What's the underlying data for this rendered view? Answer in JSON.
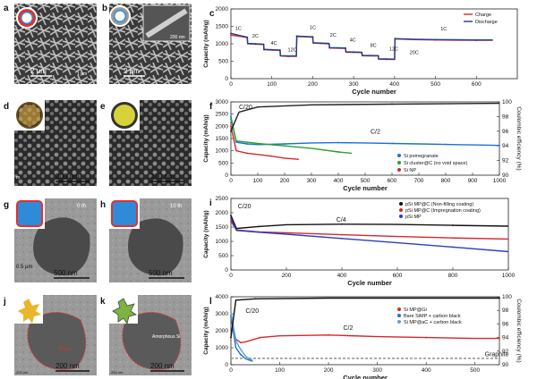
{
  "panels": [
    {
      "letter": "a",
      "type": "image",
      "scale": "2 μm",
      "inset_scale": "1 μm"
    },
    {
      "letter": "b",
      "type": "image",
      "scale": "2 μm",
      "inset_scale": "200 nm"
    },
    {
      "letter": "d",
      "type": "image",
      "scale": "200 nm",
      "inset_scale": "m"
    },
    {
      "letter": "e",
      "type": "image",
      "scale": "200 nm"
    },
    {
      "letter": "g",
      "type": "image",
      "scale": "500 nm",
      "inset_scale": "0.5 μm",
      "corner": "0 th"
    },
    {
      "letter": "h",
      "type": "image",
      "scale": "500 nm",
      "corner": "10 th"
    },
    {
      "letter": "j",
      "type": "image",
      "scale": "200 nm",
      "inset_scale": "200 nm",
      "annotation": "Si μm"
    },
    {
      "letter": "k",
      "type": "image",
      "scale": "200 nm",
      "inset_scale": "200 nm",
      "annotation": "Amorphous Si"
    }
  ],
  "chart_data": [
    {
      "id": "c",
      "letter": "c",
      "type": "line",
      "xlabel": "Cycle number",
      "ylabel": "Capacity (mAh/g)",
      "xlim": [
        0,
        700
      ],
      "ylim": [
        0,
        2000
      ],
      "xticks": [
        0,
        100,
        200,
        300,
        400,
        500,
        600
      ],
      "yticks": [
        0,
        500,
        1000,
        1500,
        2000
      ],
      "legend": [
        "Charge",
        "Discharge"
      ],
      "rate_labels": [
        {
          "text": "1C",
          "x": 18,
          "y": 1400
        },
        {
          "text": "2C",
          "x": 60,
          "y": 1180
        },
        {
          "text": "4C",
          "x": 105,
          "y": 980
        },
        {
          "text": "12C",
          "x": 150,
          "y": 780
        },
        {
          "text": "1C",
          "x": 200,
          "y": 1420
        },
        {
          "text": "2C",
          "x": 250,
          "y": 1200
        },
        {
          "text": "4C",
          "x": 298,
          "y": 1060
        },
        {
          "text": "8C",
          "x": 348,
          "y": 910
        },
        {
          "text": "12C",
          "x": 398,
          "y": 810
        },
        {
          "text": "20C",
          "x": 448,
          "y": 700
        },
        {
          "text": "1C",
          "x": 520,
          "y": 1380
        }
      ],
      "series": [
        {
          "name": "Charge",
          "color": "#d62728",
          "points": [
            [
              0,
              1250
            ],
            [
              20,
              1220
            ],
            [
              40,
              1180
            ],
            [
              41,
              1000
            ],
            [
              60,
              990
            ],
            [
              80,
              980
            ],
            [
              81,
              830
            ],
            [
              100,
              820
            ],
            [
              120,
              810
            ],
            [
              121,
              650
            ],
            [
              140,
              640
            ],
            [
              160,
              640
            ],
            [
              161,
              1210
            ],
            [
              180,
              1200
            ],
            [
              200,
              1190
            ],
            [
              201,
              1020
            ],
            [
              220,
              1010
            ],
            [
              240,
              1000
            ],
            [
              241,
              880
            ],
            [
              260,
              875
            ],
            [
              280,
              870
            ],
            [
              281,
              760
            ],
            [
              300,
              755
            ],
            [
              320,
              750
            ],
            [
              321,
              660
            ],
            [
              340,
              655
            ],
            [
              360,
              650
            ],
            [
              361,
              560
            ],
            [
              380,
              555
            ],
            [
              400,
              550
            ],
            [
              401,
              1140
            ],
            [
              450,
              1120
            ],
            [
              500,
              1110
            ],
            [
              550,
              1105
            ],
            [
              600,
              1100
            ],
            [
              640,
              1100
            ]
          ]
        },
        {
          "name": "Discharge",
          "color": "#1f3f8f",
          "points": [
            [
              0,
              1300
            ],
            [
              20,
              1240
            ],
            [
              40,
              1190
            ],
            [
              41,
              1010
            ],
            [
              60,
              1000
            ],
            [
              80,
              990
            ],
            [
              81,
              840
            ],
            [
              100,
              830
            ],
            [
              120,
              820
            ],
            [
              121,
              660
            ],
            [
              140,
              650
            ],
            [
              160,
              650
            ],
            [
              161,
              1220
            ],
            [
              180,
              1210
            ],
            [
              200,
              1200
            ],
            [
              201,
              1030
            ],
            [
              220,
              1020
            ],
            [
              240,
              1010
            ],
            [
              241,
              890
            ],
            [
              260,
              885
            ],
            [
              280,
              880
            ],
            [
              281,
              770
            ],
            [
              300,
              765
            ],
            [
              320,
              760
            ],
            [
              321,
              670
            ],
            [
              340,
              665
            ],
            [
              360,
              660
            ],
            [
              361,
              570
            ],
            [
              380,
              565
            ],
            [
              400,
              560
            ],
            [
              401,
              1150
            ],
            [
              450,
              1130
            ],
            [
              500,
              1120
            ],
            [
              550,
              1115
            ],
            [
              600,
              1110
            ],
            [
              640,
              1110
            ]
          ]
        }
      ]
    },
    {
      "id": "f",
      "letter": "f",
      "type": "line",
      "xlabel": "Cycle number",
      "ylabel": "Capacity (mAh/g)",
      "y2label": "Coulombic efficiency (%)",
      "xlim": [
        0,
        1000
      ],
      "ylim": [
        0,
        3000
      ],
      "y2lim": [
        90,
        100
      ],
      "xticks": [
        0,
        100,
        200,
        300,
        400,
        500,
        600,
        700,
        800,
        900,
        1000
      ],
      "yticks": [
        0,
        500,
        1000,
        1500,
        2000,
        2500,
        3000
      ],
      "y2ticks": [
        90,
        92,
        94,
        96,
        98,
        100
      ],
      "annotations": [
        {
          "text": "C/20",
          "x": 30,
          "y": 2700
        },
        {
          "text": "C/2",
          "x": 520,
          "y": 1700
        }
      ],
      "series": [
        {
          "name": "Si pomegranate",
          "color": "#1f6fd1",
          "points": [
            [
              0,
              2400
            ],
            [
              20,
              1350
            ],
            [
              60,
              1280
            ],
            [
              100,
              1250
            ],
            [
              200,
              1280
            ],
            [
              300,
              1320
            ],
            [
              400,
              1330
            ],
            [
              500,
              1320
            ],
            [
              600,
              1300
            ],
            [
              700,
              1280
            ],
            [
              800,
              1260
            ],
            [
              900,
              1240
            ],
            [
              1000,
              1220
            ]
          ]
        },
        {
          "name": "Si cluster@C (no void space)",
          "color": "#2ca02c",
          "points": [
            [
              0,
              2300
            ],
            [
              20,
              1400
            ],
            [
              60,
              1350
            ],
            [
              100,
              1300
            ],
            [
              200,
              1200
            ],
            [
              300,
              1100
            ],
            [
              400,
              950
            ],
            [
              450,
              900
            ]
          ]
        },
        {
          "name": "Si NP",
          "color": "#d62728",
          "points": [
            [
              0,
              2000
            ],
            [
              20,
              1000
            ],
            [
              60,
              900
            ],
            [
              100,
              850
            ],
            [
              150,
              780
            ],
            [
              200,
              700
            ],
            [
              250,
              650
            ]
          ]
        },
        {
          "name": "Coulombic efficiency",
          "color": "#222222",
          "axis": "y2",
          "points": [
            [
              0,
              96
            ],
            [
              30,
              98.6
            ],
            [
              100,
              99.3
            ],
            [
              300,
              99.6
            ],
            [
              600,
              99.7
            ],
            [
              1000,
              99.8
            ]
          ]
        }
      ]
    },
    {
      "id": "i",
      "letter": "i",
      "type": "line",
      "xlabel": "Cycle number",
      "ylabel": "Capacity (mAh/g)",
      "xlim": [
        0,
        1000
      ],
      "ylim": [
        0,
        2500
      ],
      "xticks": [
        0,
        200,
        400,
        600,
        800,
        1000
      ],
      "yticks": [
        0,
        500,
        1000,
        1500,
        2000,
        2500
      ],
      "annotations": [
        {
          "text": "C/20",
          "x": 25,
          "y": 2150
        },
        {
          "text": "C/4",
          "x": 380,
          "y": 1680
        }
      ],
      "series": [
        {
          "name": "pSi MP@C (Non-filling coating)",
          "color": "#111111",
          "points": [
            [
              0,
              1900
            ],
            [
              20,
              1450
            ],
            [
              100,
              1520
            ],
            [
              200,
              1580
            ],
            [
              400,
              1600
            ],
            [
              600,
              1590
            ],
            [
              800,
              1560
            ],
            [
              1000,
              1530
            ]
          ]
        },
        {
          "name": "pSi MP@C (Impregnation coating)",
          "color": "#d62728",
          "points": [
            [
              0,
              1700
            ],
            [
              20,
              1400
            ],
            [
              100,
              1330
            ],
            [
              200,
              1300
            ],
            [
              400,
              1230
            ],
            [
              600,
              1170
            ],
            [
              800,
              1120
            ],
            [
              1000,
              1080
            ]
          ]
        },
        {
          "name": "pSi MP",
          "color": "#2a3fbf",
          "points": [
            [
              0,
              1800
            ],
            [
              20,
              1380
            ],
            [
              100,
              1320
            ],
            [
              200,
              1250
            ],
            [
              400,
              1100
            ],
            [
              600,
              950
            ],
            [
              800,
              800
            ],
            [
              1000,
              640
            ]
          ]
        }
      ]
    },
    {
      "id": "l",
      "letter": "l",
      "type": "line",
      "xlabel": "Cycle number",
      "ylabel": "Capacity (mAh/g)",
      "y2label": "Coulombic efficiency (%)",
      "xlim": [
        0,
        550
      ],
      "ylim": [
        0,
        4000
      ],
      "y2lim": [
        90,
        100
      ],
      "xticks": [
        0,
        100,
        200,
        300,
        400,
        500
      ],
      "yticks": [
        0,
        1000,
        2000,
        3000,
        4000
      ],
      "y2ticks": [
        90,
        92,
        94,
        96,
        98,
        100
      ],
      "annotations": [
        {
          "text": "C/20",
          "x": 30,
          "y": 3050
        },
        {
          "text": "C/2",
          "x": 230,
          "y": 2050
        },
        {
          "text": "Graphite",
          "x": 520,
          "y": 500
        }
      ],
      "series": [
        {
          "name": "Si MP@Gr",
          "color": "#d62728",
          "points": [
            [
              0,
              2800
            ],
            [
              10,
              1500
            ],
            [
              20,
              1300
            ],
            [
              30,
              1350
            ],
            [
              60,
              1600
            ],
            [
              100,
              1700
            ],
            [
              200,
              1750
            ],
            [
              300,
              1650
            ],
            [
              400,
              1600
            ],
            [
              500,
              1550
            ],
            [
              550,
              1550
            ]
          ]
        },
        {
          "name": "Bare SiMP + carbon black",
          "color": "#1f6fd1",
          "points": [
            [
              0,
              2900
            ],
            [
              10,
              1000
            ],
            [
              20,
              600
            ],
            [
              30,
              350
            ],
            [
              40,
              250
            ],
            [
              45,
              200
            ]
          ]
        },
        {
          "name": "Si MP@aC + carbon black",
          "color": "#5aa0d8",
          "points": [
            [
              0,
              3100
            ],
            [
              10,
              1400
            ],
            [
              20,
              900
            ],
            [
              30,
              500
            ],
            [
              40,
              300
            ],
            [
              45,
              250
            ]
          ]
        },
        {
          "name": "Coulombic efficiency",
          "color": "#111111",
          "axis": "y2",
          "points": [
            [
              0,
              94
            ],
            [
              10,
              99.5
            ],
            [
              50,
              99.7
            ],
            [
              200,
              99.8
            ],
            [
              550,
              99.8
            ]
          ]
        },
        {
          "name": "Graphite",
          "color": "#888888",
          "dashed": true,
          "points": [
            [
              0,
              372
            ],
            [
              550,
              372
            ]
          ]
        }
      ]
    }
  ]
}
